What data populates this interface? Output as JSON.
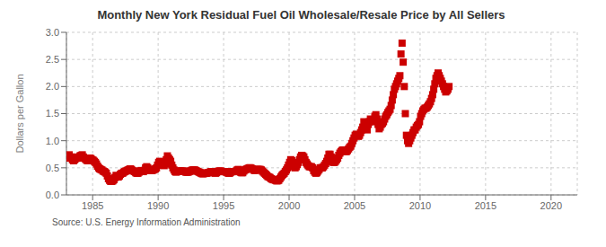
{
  "chart_data": {
    "type": "scatter",
    "title": "Monthly New York Residual Fuel Oil Wholesale/Resale Price by All Sellers",
    "ylabel": "Dollars per Gallon",
    "source": "Source: U.S. Energy Information Administration",
    "color": "#cc0000",
    "marker": "square",
    "grid": true,
    "xlim": [
      1983,
      2022
    ],
    "ylim": [
      0.0,
      3.0
    ],
    "xticks": [
      1985,
      1990,
      1995,
      2000,
      2005,
      2010,
      2015,
      2020
    ],
    "yticks": [
      {
        "value": 0.0,
        "label": "0.0"
      },
      0.5,
      {
        "value": 1.0,
        "label": "1.0"
      },
      1.5,
      {
        "value": 2.0,
        "label": "2.0"
      },
      2.5,
      {
        "value": 3.0,
        "label": "3.0"
      }
    ],
    "x": [
      1983.042,
      1983.125,
      1983.208,
      1983.292,
      1983.375,
      1983.458,
      1983.542,
      1983.625,
      1983.708,
      1983.792,
      1983.875,
      1983.958,
      1984.042,
      1984.125,
      1984.208,
      1984.292,
      1984.375,
      1984.458,
      1984.542,
      1984.625,
      1984.708,
      1984.792,
      1984.875,
      1984.958,
      1985.042,
      1985.125,
      1985.208,
      1985.292,
      1985.375,
      1985.458,
      1985.542,
      1985.625,
      1985.708,
      1985.792,
      1985.875,
      1985.958,
      1986.042,
      1986.125,
      1986.208,
      1986.292,
      1986.375,
      1986.458,
      1986.542,
      1986.625,
      1986.708,
      1986.792,
      1986.875,
      1986.958,
      1987.042,
      1987.125,
      1987.208,
      1987.292,
      1987.375,
      1987.458,
      1987.542,
      1987.625,
      1987.708,
      1987.792,
      1987.875,
      1987.958,
      1988.042,
      1988.125,
      1988.208,
      1988.292,
      1988.375,
      1988.458,
      1988.542,
      1988.625,
      1988.708,
      1988.792,
      1988.875,
      1988.958,
      1989.042,
      1989.125,
      1989.208,
      1989.292,
      1989.375,
      1989.458,
      1989.542,
      1989.625,
      1989.708,
      1989.792,
      1989.875,
      1989.958,
      1990.042,
      1990.125,
      1990.208,
      1990.292,
      1990.375,
      1990.458,
      1990.542,
      1990.625,
      1990.708,
      1990.792,
      1990.875,
      1990.958,
      1991.042,
      1991.125,
      1991.208,
      1991.292,
      1991.375,
      1991.458,
      1991.542,
      1991.625,
      1991.708,
      1991.792,
      1991.875,
      1991.958,
      1992.042,
      1992.125,
      1992.208,
      1992.292,
      1992.375,
      1992.458,
      1992.542,
      1992.625,
      1992.708,
      1992.792,
      1992.875,
      1992.958,
      1993.042,
      1993.125,
      1993.208,
      1993.292,
      1993.375,
      1993.458,
      1993.542,
      1993.625,
      1993.708,
      1993.792,
      1993.875,
      1993.958,
      1994.042,
      1994.125,
      1994.208,
      1994.292,
      1994.375,
      1994.458,
      1994.542,
      1994.625,
      1994.708,
      1994.792,
      1994.875,
      1994.958,
      1995.042,
      1995.125,
      1995.208,
      1995.292,
      1995.375,
      1995.458,
      1995.542,
      1995.625,
      1995.708,
      1995.792,
      1995.875,
      1995.958,
      1996.042,
      1996.125,
      1996.208,
      1996.292,
      1996.375,
      1996.458,
      1996.542,
      1996.625,
      1996.708,
      1996.792,
      1996.875,
      1996.958,
      1997.042,
      1997.125,
      1997.208,
      1997.292,
      1997.375,
      1997.458,
      1997.542,
      1997.625,
      1997.708,
      1997.792,
      1997.875,
      1997.958,
      1998.042,
      1998.125,
      1998.208,
      1998.292,
      1998.375,
      1998.458,
      1998.542,
      1998.625,
      1998.708,
      1998.792,
      1998.875,
      1998.958,
      1999.042,
      1999.125,
      1999.208,
      1999.292,
      1999.375,
      1999.458,
      1999.542,
      1999.625,
      1999.708,
      1999.792,
      1999.875,
      1999.958,
      2000.042,
      2000.125,
      2000.208,
      2000.292,
      2000.375,
      2000.458,
      2000.542,
      2000.625,
      2000.708,
      2000.792,
      2000.875,
      2000.958,
      2001.042,
      2001.125,
      2001.208,
      2001.292,
      2001.375,
      2001.458,
      2001.542,
      2001.625,
      2001.708,
      2001.792,
      2001.875,
      2001.958,
      2002.042,
      2002.125,
      2002.208,
      2002.292,
      2002.375,
      2002.458,
      2002.542,
      2002.625,
      2002.708,
      2002.792,
      2002.875,
      2002.958,
      2003.042,
      2003.125,
      2003.208,
      2003.292,
      2003.375,
      2003.458,
      2003.542,
      2003.625,
      2003.708,
      2003.792,
      2003.875,
      2003.958,
      2004.042,
      2004.125,
      2004.208,
      2004.292,
      2004.375,
      2004.458,
      2004.542,
      2004.625,
      2004.708,
      2004.792,
      2004.875,
      2004.958,
      2005.042,
      2005.125,
      2005.208,
      2005.292,
      2005.375,
      2005.458,
      2005.542,
      2005.625,
      2005.708,
      2005.792,
      2005.875,
      2005.958,
      2006.042,
      2006.125,
      2006.208,
      2006.292,
      2006.375,
      2006.458,
      2006.542,
      2006.625,
      2006.708,
      2006.792,
      2006.875,
      2006.958,
      2007.042,
      2007.125,
      2007.208,
      2007.292,
      2007.375,
      2007.458,
      2007.542,
      2007.625,
      2007.708,
      2007.792,
      2007.875,
      2007.958,
      2008.042,
      2008.125,
      2008.208,
      2008.292,
      2008.375,
      2008.458,
      2008.542,
      2008.625,
      2008.708,
      2008.792,
      2008.875,
      2008.958,
      2009.042,
      2009.125,
      2009.208,
      2009.292,
      2009.375,
      2009.458,
      2009.542,
      2009.625,
      2009.708,
      2009.792,
      2009.875,
      2009.958,
      2010.042,
      2010.125,
      2010.208,
      2010.292,
      2010.375,
      2010.458,
      2010.542,
      2010.625,
      2010.708,
      2010.792,
      2010.875,
      2010.958,
      2011.042,
      2011.125,
      2011.208,
      2011.292,
      2011.375,
      2011.458,
      2011.542,
      2011.625,
      2011.708,
      2011.792,
      2011.875,
      2011.958,
      2012.042,
      2012.125,
      2012.208
    ],
    "values": [
      0.68,
      0.72,
      0.74,
      0.7,
      0.68,
      0.65,
      0.63,
      0.65,
      0.67,
      0.7,
      0.69,
      0.68,
      0.72,
      0.73,
      0.74,
      0.7,
      0.68,
      0.66,
      0.64,
      0.63,
      0.65,
      0.68,
      0.67,
      0.65,
      0.64,
      0.62,
      0.6,
      0.57,
      0.53,
      0.5,
      0.48,
      0.47,
      0.46,
      0.44,
      0.43,
      0.42,
      0.4,
      0.35,
      0.3,
      0.27,
      0.25,
      0.25,
      0.26,
      0.28,
      0.32,
      0.36,
      0.35,
      0.33,
      0.35,
      0.38,
      0.4,
      0.4,
      0.42,
      0.43,
      0.44,
      0.45,
      0.46,
      0.47,
      0.48,
      0.47,
      0.45,
      0.44,
      0.43,
      0.41,
      0.4,
      0.4,
      0.42,
      0.44,
      0.45,
      0.44,
      0.43,
      0.45,
      0.5,
      0.52,
      0.5,
      0.47,
      0.46,
      0.45,
      0.45,
      0.46,
      0.47,
      0.48,
      0.5,
      0.55,
      0.6,
      0.62,
      0.6,
      0.57,
      0.55,
      0.54,
      0.57,
      0.65,
      0.72,
      0.68,
      0.65,
      0.62,
      0.55,
      0.5,
      0.46,
      0.43,
      0.42,
      0.43,
      0.44,
      0.44,
      0.44,
      0.44,
      0.44,
      0.44,
      0.43,
      0.42,
      0.42,
      0.42,
      0.43,
      0.44,
      0.45,
      0.46,
      0.46,
      0.46,
      0.45,
      0.44,
      0.43,
      0.42,
      0.41,
      0.4,
      0.39,
      0.39,
      0.4,
      0.4,
      0.4,
      0.41,
      0.41,
      0.42,
      0.43,
      0.43,
      0.42,
      0.41,
      0.4,
      0.41,
      0.43,
      0.44,
      0.44,
      0.44,
      0.43,
      0.43,
      0.43,
      0.43,
      0.42,
      0.41,
      0.4,
      0.4,
      0.42,
      0.43,
      0.43,
      0.43,
      0.43,
      0.44,
      0.46,
      0.47,
      0.45,
      0.42,
      0.41,
      0.41,
      0.44,
      0.46,
      0.47,
      0.48,
      0.49,
      0.5,
      0.5,
      0.49,
      0.48,
      0.46,
      0.45,
      0.46,
      0.47,
      0.47,
      0.47,
      0.47,
      0.46,
      0.44,
      0.42,
      0.4,
      0.38,
      0.36,
      0.34,
      0.33,
      0.32,
      0.3,
      0.29,
      0.28,
      0.28,
      0.27,
      0.26,
      0.26,
      0.27,
      0.3,
      0.33,
      0.36,
      0.38,
      0.4,
      0.43,
      0.46,
      0.5,
      0.55,
      0.6,
      0.65,
      0.63,
      0.57,
      0.52,
      0.5,
      0.52,
      0.56,
      0.6,
      0.65,
      0.7,
      0.73,
      0.72,
      0.7,
      0.65,
      0.6,
      0.57,
      0.54,
      0.52,
      0.52,
      0.52,
      0.5,
      0.45,
      0.42,
      0.4,
      0.41,
      0.44,
      0.47,
      0.5,
      0.5,
      0.5,
      0.52,
      0.55,
      0.58,
      0.62,
      0.68,
      0.75,
      0.75,
      0.7,
      0.62,
      0.6,
      0.6,
      0.62,
      0.65,
      0.68,
      0.73,
      0.77,
      0.8,
      0.82,
      0.83,
      0.82,
      0.8,
      0.8,
      0.82,
      0.85,
      0.88,
      0.9,
      0.95,
      1.0,
      1.05,
      1.1,
      1.12,
      1.1,
      1.08,
      1.1,
      1.15,
      1.2,
      1.25,
      1.35,
      1.3,
      1.25,
      1.2,
      1.3,
      1.35,
      1.4,
      1.38,
      1.35,
      1.38,
      1.45,
      1.48,
      1.4,
      1.3,
      1.22,
      1.25,
      1.3,
      1.32,
      1.35,
      1.4,
      1.45,
      1.48,
      1.52,
      1.55,
      1.58,
      1.65,
      1.75,
      1.85,
      1.95,
      2.0,
      2.05,
      2.1,
      2.15,
      2.2,
      2.6,
      2.8,
      2.45,
      2.0,
      1.5,
      1.1,
      1.0,
      0.95,
      1.0,
      1.05,
      1.1,
      1.15,
      1.2,
      1.2,
      1.25,
      1.28,
      1.3,
      1.35,
      1.45,
      1.5,
      1.55,
      1.58,
      1.6,
      1.6,
      1.62,
      1.65,
      1.68,
      1.72,
      1.78,
      1.85,
      1.95,
      2.05,
      2.15,
      2.2,
      2.25,
      2.2,
      2.15,
      2.1,
      2.05,
      2.0,
      1.95,
      1.9,
      1.92,
      1.95,
      2.0
    ]
  }
}
